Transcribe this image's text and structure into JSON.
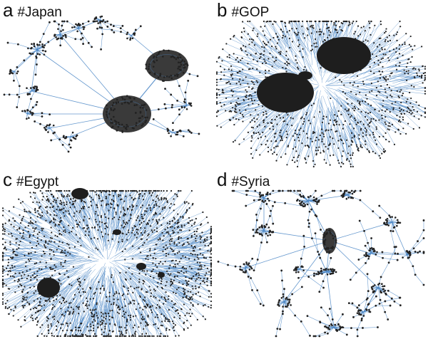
{
  "panels": [
    {
      "letter": "a",
      "hashtag": "#Japan"
    },
    {
      "letter": "b",
      "hashtag": "#GOP"
    },
    {
      "letter": "c",
      "hashtag": "#Egypt"
    },
    {
      "letter": "d",
      "hashtag": "#Syria"
    }
  ],
  "colors": {
    "edge": "#4a86c5",
    "node": "#222222",
    "background": "#ffffff"
  }
}
